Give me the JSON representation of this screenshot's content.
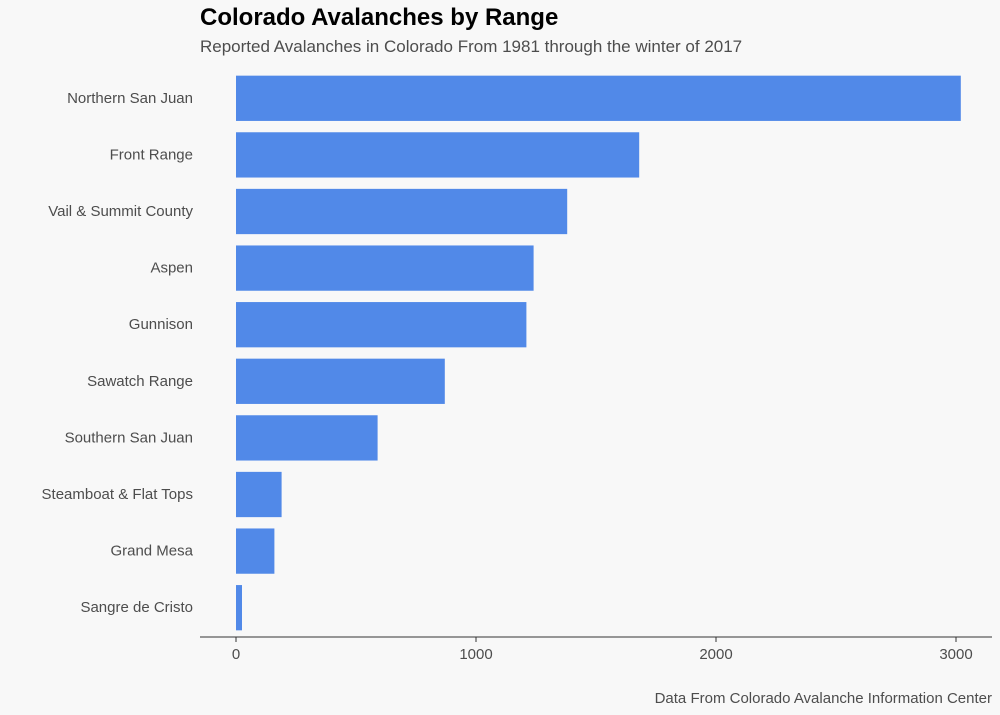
{
  "chart_data": {
    "type": "bar",
    "orientation": "horizontal",
    "title": "Colorado Avalanches by Range",
    "subtitle": "Reported Avalanches in Colorado From 1981 through the winter of 2017",
    "caption": "Data From Colorado Avalanche Information Center",
    "xlabel": "",
    "ylabel": "",
    "categories": [
      "Northern San Juan",
      "Front Range",
      "Vail & Summit County",
      "Aspen",
      "Gunnison",
      "Sawatch Range",
      "Southern San Juan",
      "Steamboat & Flat Tops",
      "Grand Mesa",
      "Sangre de Cristo"
    ],
    "values": [
      3020,
      1680,
      1380,
      1240,
      1210,
      870,
      590,
      190,
      160,
      25
    ],
    "xlim": [
      -150,
      3150
    ],
    "xticks": [
      0,
      1000,
      2000,
      3000
    ],
    "grid": false,
    "bar_color": "#5189e8",
    "axis_color": "#333333"
  }
}
